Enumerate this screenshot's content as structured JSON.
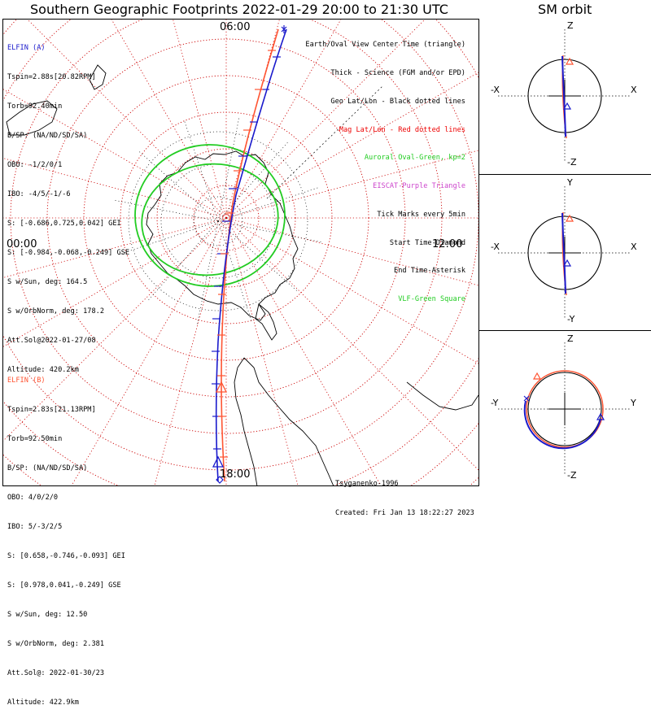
{
  "title": "Southern Geographic Footprints 2022-01-29 20:00 to 21:30 UTC",
  "orbit_title": "SM orbit",
  "colors": {
    "elfin_a": "#1a1acc",
    "elfin_b": "#ff5533",
    "oval": "#22cc22",
    "latlon": "#cc0000",
    "eiscat": "#cc44cc",
    "vlf": "#22cc22"
  },
  "clock_labels": {
    "top": "06:00",
    "left": "00:00",
    "right": "12:00",
    "bottom": "18:00"
  },
  "elfin_a": {
    "name": "ELFIN (A)",
    "lines": [
      "Tspin=2.88s[20.82RPM]",
      "Torb=92.40min",
      "B/SP: (NA/ND/SD/SA)",
      "OBO: -1/2/0/1",
      "IBO: -4/5/-1/-6",
      "S: [-0.686,0.725,0.042] GEI",
      "S: [-0.984,-0.068,-0.249] GSE",
      "S w/Sun, deg: 164.5",
      "S w/OrbNorm, deg: 178.2",
      "Att.Sol@2022-01-27/08",
      "Altitude: 420.2km"
    ]
  },
  "elfin_b": {
    "name": "ELFIN (B)",
    "lines": [
      "Tspin=2.83s[21.13RPM]",
      "Torb=92.50min",
      "B/SP: (NA/ND/SD/SA)",
      "OBO: 4/0/2/0",
      "IBO: 5/-3/2/5",
      "S: [0.658,-0.746,-0.093] GEI",
      "S: [0.978,0.041,-0.249] GSE",
      "S w/Sun, deg: 12.50",
      "S w/OrbNorm, deg: 2.381",
      "Att.Sol@: 2022-01-30/23",
      "Altitude: 422.9km"
    ]
  },
  "legend": [
    {
      "text": "Earth/Oval View Center Time (triangle)",
      "color": "#000000"
    },
    {
      "text": "Thick - Science (FGM and/or EPD)",
      "color": "#000000"
    },
    {
      "text": "Geo Lat/Lon - Black dotted lines",
      "color": "#000000"
    },
    {
      "text": "Mag Lat/Lon - Red dotted lines",
      "color": "#ee0000"
    },
    {
      "text": "Auroral Oval-Green, kp=2",
      "color": "#22cc22"
    },
    {
      "text": "EISCAT-Purple Triangle",
      "color": "#cc44cc"
    },
    {
      "text": "Tick Marks every 5min",
      "color": "#000000"
    },
    {
      "text": "Start Time-Diamond",
      "color": "#000000"
    },
    {
      "text": "End Time-Asterisk",
      "color": "#000000"
    },
    {
      "text": "VLF-Green Square",
      "color": "#22cc22"
    }
  ],
  "footer": {
    "model": "Tsyganenko-1996",
    "created": "Created: Fri Jan 13 18:22:27 2023"
  },
  "orbit_panels": [
    {
      "top": "Z",
      "bottom": "-Z",
      "left": "-X",
      "right": "X"
    },
    {
      "top": "Y",
      "bottom": "-Y",
      "left": "-X",
      "right": "X"
    },
    {
      "top": "Z",
      "bottom": "-Z",
      "left": "-Y",
      "right": "Y"
    }
  ]
}
